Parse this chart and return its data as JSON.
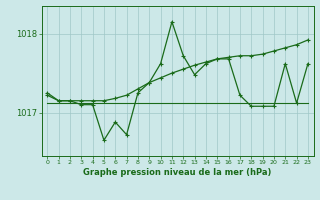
{
  "x": [
    0,
    1,
    2,
    3,
    4,
    5,
    6,
    7,
    8,
    9,
    10,
    11,
    12,
    13,
    14,
    15,
    16,
    17,
    18,
    19,
    20,
    21,
    22,
    23
  ],
  "line_volatile": [
    1017.25,
    1017.15,
    1017.15,
    1017.1,
    1017.1,
    1016.65,
    1016.88,
    1016.72,
    1017.25,
    1017.38,
    1017.62,
    1018.15,
    1017.72,
    1017.48,
    1017.62,
    1017.68,
    1017.68,
    1017.22,
    1017.08,
    1017.08,
    1017.08,
    1017.62,
    1017.12,
    1017.62
  ],
  "line_trend": [
    1017.22,
    1017.15,
    1017.15,
    1017.15,
    1017.15,
    1017.15,
    1017.18,
    1017.22,
    1017.3,
    1017.38,
    1017.44,
    1017.5,
    1017.55,
    1017.6,
    1017.64,
    1017.68,
    1017.7,
    1017.72,
    1017.72,
    1017.74,
    1017.78,
    1017.82,
    1017.86,
    1017.92
  ],
  "line_flat": [
    1017.12,
    1017.12,
    1017.12,
    1017.12,
    1017.12,
    1017.12,
    1017.12,
    1017.12,
    1017.12,
    1017.12,
    1017.12,
    1017.12,
    1017.12,
    1017.12,
    1017.12,
    1017.12,
    1017.12,
    1017.12,
    1017.12,
    1017.12,
    1017.12,
    1017.12,
    1017.12,
    1017.12
  ],
  "line_color": "#1a6b1a",
  "bg_color": "#cce8e8",
  "grid_color": "#a0c8c8",
  "xlabel": "Graphe pression niveau de la mer (hPa)",
  "yticks": [
    1017,
    1018
  ],
  "ylim": [
    1016.45,
    1018.35
  ],
  "xlim": [
    -0.5,
    23.5
  ],
  "figsize": [
    3.2,
    2.0
  ],
  "dpi": 100
}
